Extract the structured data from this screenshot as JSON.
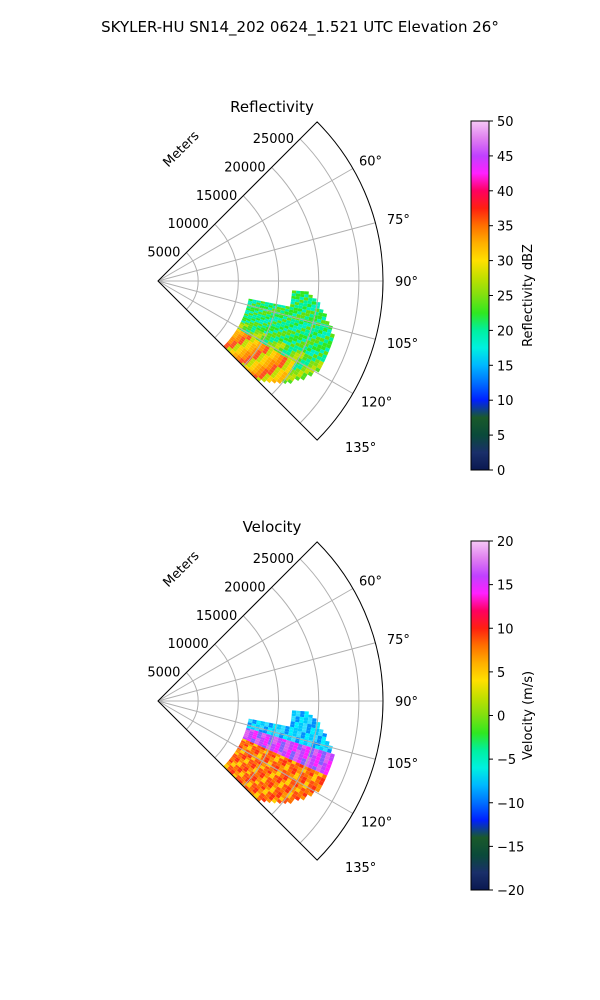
{
  "figure": {
    "suptitle": "SKYLER-HU  SN14_202  0624_1.521 UTC Elevation 26°"
  },
  "chart_data": [
    {
      "type": "heatmap",
      "subtype": "polar-sector",
      "title": "Reflectivity",
      "radial_label": "Meters",
      "range_ticks": [
        5000,
        10000,
        15000,
        20000,
        25000
      ],
      "r_max": 28000,
      "azimuth_range": [
        45,
        135
      ],
      "azimuth_ticks": [
        "60°",
        "75°",
        "90°",
        "105°",
        "120°",
        "135°"
      ],
      "grid": true,
      "colorbar": {
        "label": "Reflectivity dBZ",
        "min": 0,
        "max": 50,
        "ticks": [
          0,
          5,
          10,
          15,
          20,
          25,
          30,
          35,
          40,
          45,
          50
        ],
        "tick_labels": [
          "0",
          "5",
          "10",
          "15",
          "20",
          "25",
          "30",
          "35",
          "40",
          "45",
          "50"
        ]
      },
      "echo_region": {
        "azimuth": [
          94,
          136
        ],
        "range_m": [
          11500,
          23000
        ]
      }
    },
    {
      "type": "heatmap",
      "subtype": "polar-sector",
      "title": "Velocity",
      "radial_label": "Meters",
      "range_ticks": [
        5000,
        10000,
        15000,
        20000,
        25000
      ],
      "r_max": 28000,
      "azimuth_range": [
        45,
        135
      ],
      "azimuth_ticks": [
        "60°",
        "75°",
        "90°",
        "105°",
        "120°",
        "135°"
      ],
      "grid": true,
      "colorbar": {
        "label": "Velocity (m/s)",
        "min": -20,
        "max": 20,
        "ticks": [
          -20,
          -15,
          -10,
          -5,
          0,
          5,
          10,
          15,
          20
        ],
        "tick_labels": [
          "−20",
          "−15",
          "−10",
          "−5",
          "0",
          "5",
          "10",
          "15",
          "20"
        ]
      },
      "echo_region": {
        "azimuth": [
          94,
          136
        ],
        "range_m": [
          11500,
          23000
        ]
      }
    }
  ],
  "colormap_stops": [
    "#0a1850",
    "#1a2f6a",
    "#0a4a3a",
    "#1a5a2a",
    "#0020ff",
    "#0070ff",
    "#00b8ff",
    "#00f0e0",
    "#00f0a0",
    "#30e820",
    "#80e010",
    "#c0e000",
    "#ffe000",
    "#ffb000",
    "#ff7000",
    "#ff2010",
    "#ff0060",
    "#ff20ff",
    "#c040ff",
    "#e080f0",
    "#f6c8f6"
  ]
}
